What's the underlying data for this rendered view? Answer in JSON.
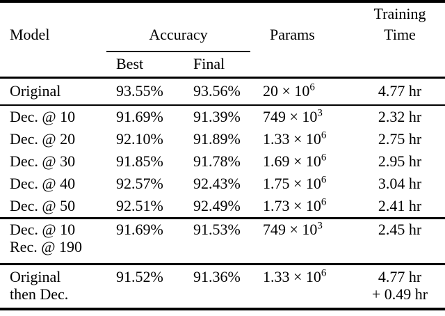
{
  "colors": {
    "background": "#ffffff",
    "text": "#000000",
    "rule": "#000000"
  },
  "table": {
    "header": {
      "model": "Model",
      "accuracy_group": "Accuracy",
      "best": "Best",
      "final": "Final",
      "params": "Params",
      "training_time_line1": "Training",
      "training_time_line2": "Time"
    },
    "sections": [
      {
        "rows": [
          {
            "model_line1": "Original",
            "best": "93.55%",
            "final": "93.56%",
            "params_mantissa": "20 × 10",
            "params_exponent": "6",
            "time_line1": "4.77 hr"
          }
        ]
      },
      {
        "rows": [
          {
            "model_line1": "Dec. @ 10",
            "best": "91.69%",
            "final": "91.39%",
            "params_mantissa": "749 × 10",
            "params_exponent": "3",
            "time_line1": "2.32 hr"
          },
          {
            "model_line1": "Dec. @ 20",
            "best": "92.10%",
            "final": "91.89%",
            "params_mantissa": "1.33 × 10",
            "params_exponent": "6",
            "time_line1": "2.75 hr"
          },
          {
            "model_line1": "Dec. @ 30",
            "best": "91.85%",
            "final": "91.78%",
            "params_mantissa": "1.69 × 10",
            "params_exponent": "6",
            "time_line1": "2.95 hr"
          },
          {
            "model_line1": "Dec. @ 40",
            "best": "92.57%",
            "final": "92.43%",
            "params_mantissa": "1.75 × 10",
            "params_exponent": "6",
            "time_line1": "3.04 hr"
          },
          {
            "model_line1": "Dec. @ 50",
            "best": "92.51%",
            "final": "92.49%",
            "params_mantissa": "1.73 × 10",
            "params_exponent": "6",
            "time_line1": "2.41 hr"
          }
        ]
      },
      {
        "rows": [
          {
            "model_line1": "Dec. @ 10",
            "model_line2": "Rec. @ 190",
            "best": "91.69%",
            "final": "91.53%",
            "params_mantissa": "749 × 10",
            "params_exponent": "3",
            "time_line1": "2.45 hr"
          }
        ]
      },
      {
        "rows": [
          {
            "model_line1": "Original",
            "model_line2": "then Dec.",
            "best": "91.52%",
            "final": "91.36%",
            "params_mantissa": "1.33 × 10",
            "params_exponent": "6",
            "time_line1": "4.77 hr",
            "time_line2": "+ 0.49 hr"
          }
        ]
      }
    ]
  }
}
